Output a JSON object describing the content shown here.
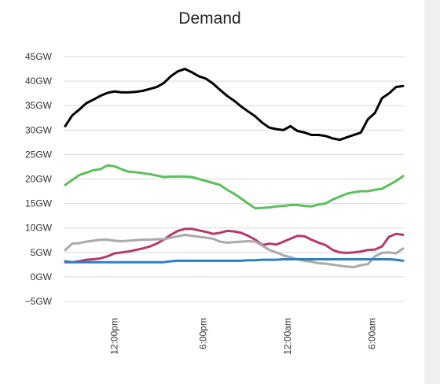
{
  "chart_data": {
    "type": "line",
    "title": "Demand",
    "xlabel": "",
    "ylabel": "",
    "y_unit": "GW",
    "ylim": [
      -5,
      45
    ],
    "yticks": [
      -5,
      0,
      5,
      10,
      15,
      20,
      25,
      30,
      35,
      40,
      45
    ],
    "ytick_labels": [
      "−5GW",
      "0GW",
      "5GW",
      "10GW",
      "15GW",
      "20GW",
      "25GW",
      "30GW",
      "35GW",
      "40GW",
      "45GW"
    ],
    "grid": true,
    "legend": "none",
    "x_hours": [
      8.0,
      8.5,
      9.0,
      9.5,
      10.0,
      10.5,
      11.0,
      11.5,
      12.0,
      12.5,
      13.0,
      13.5,
      14.0,
      14.5,
      15.0,
      15.5,
      16.0,
      16.5,
      17.0,
      17.5,
      18.0,
      18.5,
      19.0,
      19.5,
      20.0,
      20.5,
      21.0,
      21.5,
      22.0,
      22.5,
      23.0,
      23.5,
      24.0,
      24.5,
      25.0,
      25.5,
      26.0,
      26.5,
      27.0,
      27.5,
      28.0,
      28.5,
      29.0,
      29.5,
      30.0,
      30.5,
      31.0,
      31.5,
      32.0
    ],
    "x_range_hours": [
      8.0,
      32.0
    ],
    "xticks": [
      {
        "hour": 11.5,
        "label": "12:00pm"
      },
      {
        "hour": 17.8,
        "label": "6:00pm"
      },
      {
        "hour": 23.8,
        "label": "12:00am"
      },
      {
        "hour": 29.8,
        "label": "6:00am"
      }
    ],
    "series": [
      {
        "color": "#000000",
        "values": [
          30.8,
          33.0,
          34.2,
          35.5,
          36.2,
          37.0,
          37.6,
          37.9,
          37.7,
          37.7,
          37.8,
          38.0,
          38.4,
          38.8,
          39.6,
          41.0,
          42.0,
          42.5,
          41.8,
          41.0,
          40.5,
          39.5,
          38.2,
          37.0,
          36.0,
          34.8,
          33.8,
          32.8,
          31.5,
          30.5,
          30.2,
          30.0,
          30.8,
          29.8,
          29.5,
          29.0,
          29.0,
          28.8,
          28.3,
          28.0,
          28.5,
          29.0,
          29.5,
          32.2,
          33.5,
          36.5,
          37.5,
          38.8,
          39.0
        ]
      },
      {
        "color": "#5cbf5c",
        "values": [
          18.8,
          19.8,
          20.8,
          21.3,
          21.8,
          22.0,
          22.8,
          22.6,
          22.0,
          21.5,
          21.4,
          21.2,
          21.0,
          20.7,
          20.4,
          20.5,
          20.5,
          20.5,
          20.4,
          20.0,
          19.6,
          19.2,
          18.8,
          17.8,
          17.0,
          16.0,
          15.0,
          14.0,
          14.1,
          14.2,
          14.4,
          14.5,
          14.7,
          14.7,
          14.5,
          14.4,
          14.8,
          15.0,
          15.8,
          16.4,
          17.0,
          17.3,
          17.5,
          17.5,
          17.8,
          18.0,
          18.8,
          19.6,
          20.6
        ]
      },
      {
        "color": "#b33a6a",
        "values": [
          3.0,
          3.0,
          3.2,
          3.5,
          3.6,
          3.8,
          4.2,
          4.8,
          5.0,
          5.2,
          5.5,
          5.8,
          6.2,
          6.8,
          7.6,
          8.6,
          9.4,
          9.8,
          9.8,
          9.5,
          9.2,
          8.8,
          9.0,
          9.4,
          9.3,
          9.0,
          8.4,
          7.6,
          6.5,
          6.8,
          6.6,
          7.2,
          7.8,
          8.4,
          8.3,
          7.6,
          7.0,
          6.5,
          5.5,
          5.0,
          4.9,
          5.0,
          5.2,
          5.5,
          5.6,
          6.2,
          8.2,
          8.8,
          8.6
        ]
      },
      {
        "color": "#aaaaaa",
        "values": [
          5.5,
          6.8,
          6.9,
          7.2,
          7.4,
          7.6,
          7.6,
          7.4,
          7.3,
          7.4,
          7.5,
          7.6,
          7.6,
          7.7,
          7.7,
          8.0,
          8.3,
          8.6,
          8.4,
          8.2,
          8.0,
          7.8,
          7.2,
          7.0,
          7.1,
          7.2,
          7.3,
          7.2,
          6.4,
          5.5,
          5.0,
          4.4,
          4.0,
          3.6,
          3.3,
          3.1,
          2.8,
          2.7,
          2.5,
          2.3,
          2.1,
          2.0,
          2.4,
          2.6,
          4.2,
          4.9,
          5.0,
          4.8,
          5.8
        ]
      },
      {
        "color": "#2f7fc8",
        "values": [
          3.2,
          3.0,
          3.0,
          3.0,
          3.0,
          3.0,
          3.0,
          3.0,
          3.0,
          3.0,
          3.0,
          3.0,
          3.0,
          3.0,
          3.0,
          3.2,
          3.3,
          3.3,
          3.3,
          3.3,
          3.3,
          3.3,
          3.3,
          3.3,
          3.3,
          3.3,
          3.4,
          3.4,
          3.5,
          3.5,
          3.5,
          3.6,
          3.6,
          3.6,
          3.6,
          3.6,
          3.6,
          3.6,
          3.6,
          3.6,
          3.6,
          3.6,
          3.6,
          3.6,
          3.6,
          3.6,
          3.6,
          3.5,
          3.3
        ]
      }
    ]
  }
}
